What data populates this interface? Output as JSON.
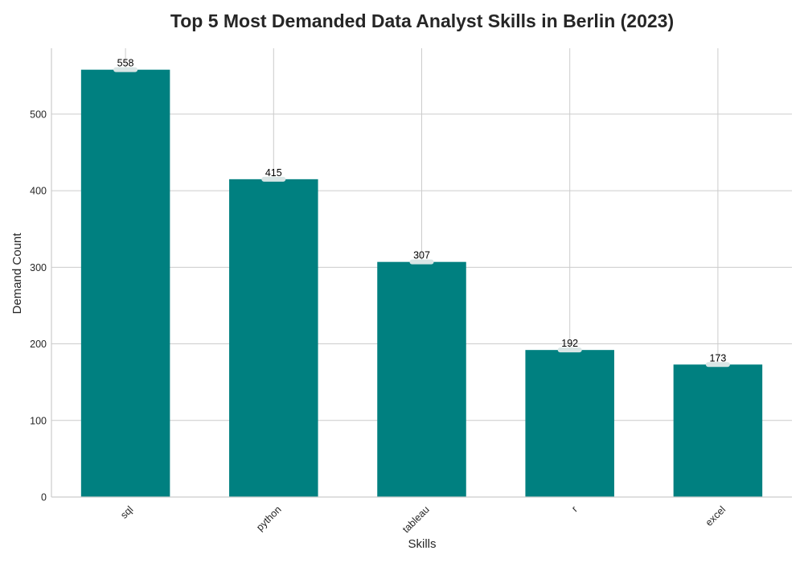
{
  "chart_data": {
    "type": "bar",
    "title": "Top 5 Most Demanded Data Analyst Skills in Berlin (2023)",
    "xlabel": "Skills",
    "ylabel": "Demand Count",
    "categories": [
      "sql",
      "python",
      "tableau",
      "r",
      "excel"
    ],
    "values": [
      558,
      415,
      307,
      192,
      173
    ],
    "data_labels": [
      "558",
      "415",
      "307",
      "192",
      "173"
    ],
    "ylim": [
      0,
      586
    ],
    "yticks": [
      0,
      100,
      200,
      300,
      400,
      500
    ],
    "ytick_labels": [
      "0",
      "100",
      "200",
      "300",
      "400",
      "500"
    ],
    "grid": true,
    "legend": "none",
    "bar_color": "#008080",
    "label_box_color": "#d9e6e6",
    "xtick_rotation": -45
  }
}
